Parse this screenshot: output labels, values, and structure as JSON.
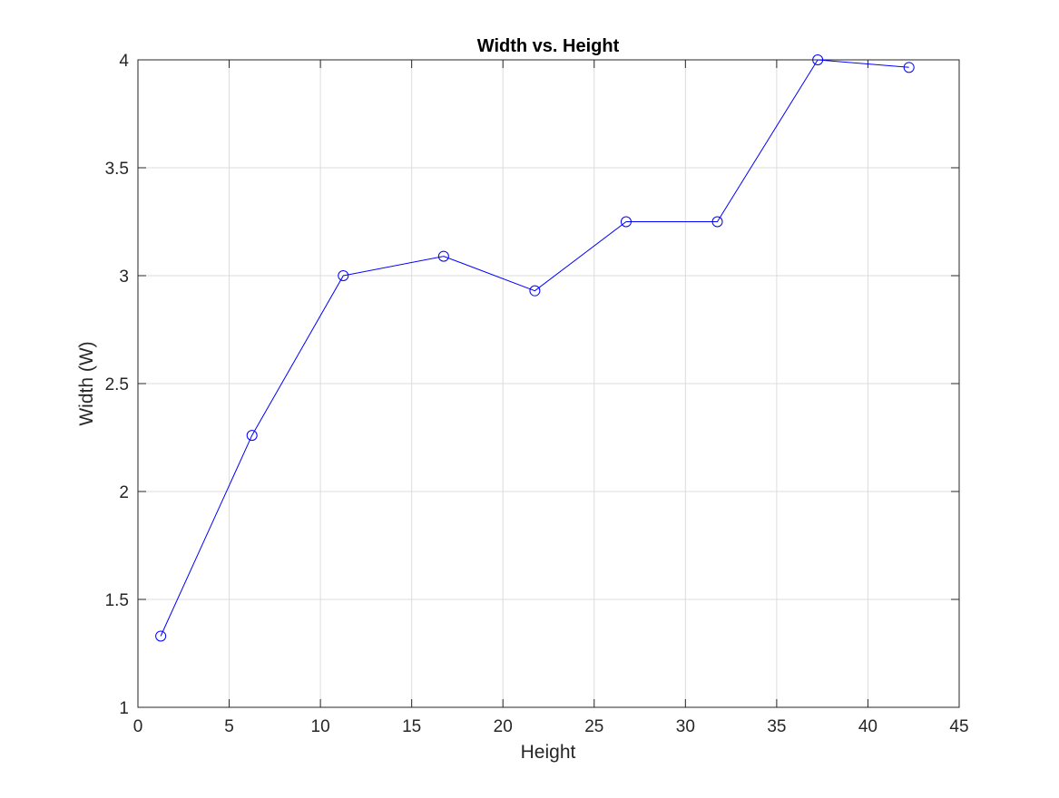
{
  "chart_data": {
    "type": "line",
    "title": "Width vs. Height",
    "xlabel": "Height",
    "ylabel": "Width (W)",
    "xlim": [
      0,
      45
    ],
    "ylim": [
      1,
      4
    ],
    "grid": true,
    "legend": "none",
    "x_ticks": [
      "0",
      "5",
      "10",
      "15",
      "20",
      "25",
      "30",
      "35",
      "40",
      "45"
    ],
    "y_ticks": [
      "1",
      "1.5",
      "2",
      "2.5",
      "3",
      "3.5",
      "4"
    ],
    "series": [
      {
        "color": "#0000ff",
        "marker": "circle",
        "x": [
          1.25,
          6.25,
          11.25,
          16.75,
          21.75,
          26.75,
          31.75,
          37.25,
          42.25
        ],
        "y": [
          1.33,
          2.26,
          3.0,
          3.09,
          2.93,
          3.25,
          3.25,
          4.0,
          3.965
        ]
      }
    ]
  }
}
